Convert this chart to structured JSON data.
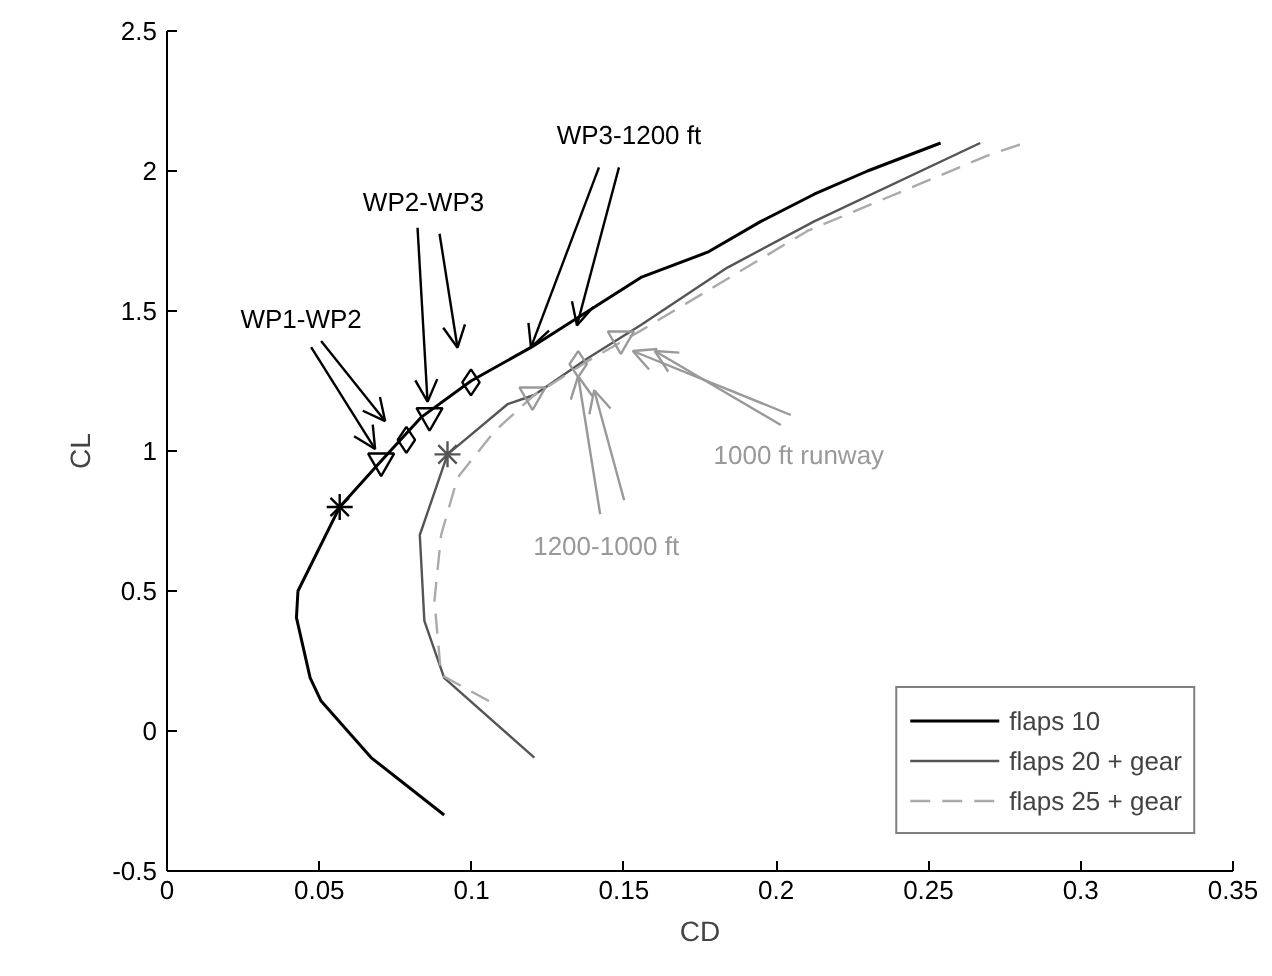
{
  "chart_data": {
    "type": "line",
    "xlabel": "CD",
    "ylabel": "CL",
    "xlim": [
      0,
      0.35
    ],
    "ylim": [
      -0.5,
      2.5
    ],
    "xticks": [
      0,
      0.05,
      0.1,
      0.15,
      0.2,
      0.25,
      0.3,
      0.35
    ],
    "yticks": [
      -0.5,
      0,
      0.5,
      1,
      1.5,
      2,
      2.5
    ],
    "grid": false,
    "legend": "bottom right",
    "series": [
      {
        "name": "flaps 10",
        "color": "#000000",
        "line_style": "solid",
        "x": [
          0.091,
          0.067,
          0.0506,
          0.047,
          0.0425,
          0.043,
          0.0567,
          0.0703,
          0.0834,
          0.0998,
          0.1195,
          0.1556,
          0.1775,
          0.195,
          0.2125,
          0.23,
          0.254
        ],
        "values": [
          -0.3,
          -0.095,
          0.107,
          0.19,
          0.405,
          0.5,
          0.8,
          0.964,
          1.12,
          1.25,
          1.37,
          1.62,
          1.71,
          1.82,
          1.917,
          2.0,
          2.1
        ]
      },
      {
        "name": "flaps 20 + gear",
        "color": "#555555",
        "line_style": "solid",
        "x": [
          0.1206,
          0.091,
          0.0845,
          0.083,
          0.0921,
          0.1118,
          0.1206,
          0.138,
          0.1556,
          0.184,
          0.2125,
          0.267
        ],
        "values": [
          -0.095,
          0.19,
          0.393,
          0.7,
          0.988,
          1.167,
          1.2,
          1.33,
          1.45,
          1.655,
          1.82,
          2.1
        ]
      },
      {
        "name": "flaps 25 + gear",
        "color": "#aaaaaa",
        "line_style": "dashed",
        "x": [
          0.1057,
          0.09,
          0.0878,
          0.09,
          0.0954,
          0.1075,
          0.1206,
          0.138,
          0.1556,
          0.2103,
          0.2694,
          0.2815
        ],
        "values": [
          0.107,
          0.2,
          0.464,
          0.7,
          0.905,
          1.07,
          1.2,
          1.32,
          1.43,
          1.786,
          2.055,
          2.1
        ]
      },
      {
        "type": "scatter",
        "marker": "cross",
        "color": "#000000",
        "x": [
          0.0567
        ],
        "values": [
          0.8
        ]
      },
      {
        "type": "scatter",
        "marker": "cross",
        "color": "#555555",
        "x": [
          0.0921
        ],
        "values": [
          0.988
        ]
      },
      {
        "type": "scatter",
        "marker": "triangle",
        "color": "#000000",
        "x": [
          0.0703,
          0.0862
        ],
        "values": [
          0.964,
          1.126
        ]
      },
      {
        "type": "scatter",
        "marker": "diamond",
        "color": "#000000",
        "x": [
          0.0786,
          0.0998
        ],
        "values": [
          1.04,
          1.245
        ]
      },
      {
        "type": "scatter",
        "marker": "triangle",
        "color": "#999999",
        "x": [
          0.12,
          0.149
        ],
        "values": [
          1.2,
          1.4
        ]
      },
      {
        "type": "scatter",
        "marker": "diamond",
        "color": "#999999",
        "x": [
          0.135
        ],
        "values": [
          1.31
        ]
      }
    ],
    "annotations": [
      {
        "text": "WP1-WP2",
        "x": 0.0703,
        "y": 0.964
      },
      {
        "text": "WP2-WP3",
        "x": 0.0862,
        "y": 1.126
      },
      {
        "text": "WP3-1200 ft",
        "x": 0.1195,
        "y": 1.37
      },
      {
        "text": "1200-1000 ft",
        "x": 0.135,
        "y": 1.31
      },
      {
        "text": "1000 ft runway",
        "x": 0.149,
        "y": 1.4
      }
    ]
  }
}
